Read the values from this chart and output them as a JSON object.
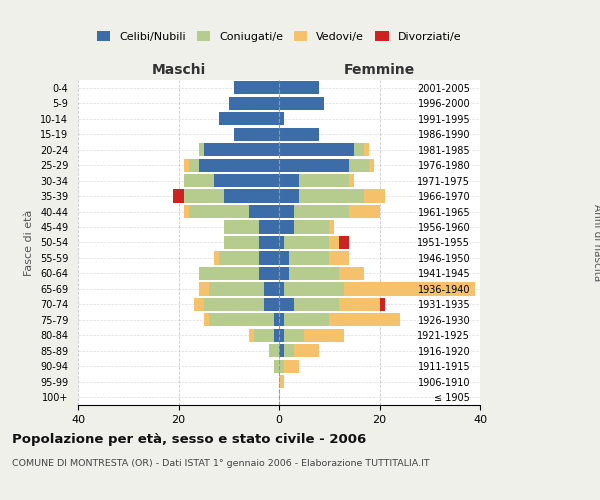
{
  "age_groups": [
    "100+",
    "95-99",
    "90-94",
    "85-89",
    "80-84",
    "75-79",
    "70-74",
    "65-69",
    "60-64",
    "55-59",
    "50-54",
    "45-49",
    "40-44",
    "35-39",
    "30-34",
    "25-29",
    "20-24",
    "15-19",
    "10-14",
    "5-9",
    "0-4"
  ],
  "birth_years": [
    "≤ 1905",
    "1906-1910",
    "1911-1915",
    "1916-1920",
    "1921-1925",
    "1926-1930",
    "1931-1935",
    "1936-1940",
    "1941-1945",
    "1946-1950",
    "1951-1955",
    "1956-1960",
    "1961-1965",
    "1966-1970",
    "1971-1975",
    "1976-1980",
    "1981-1985",
    "1986-1990",
    "1991-1995",
    "1996-2000",
    "2001-2005"
  ],
  "males": {
    "celibi": [
      0,
      0,
      0,
      0,
      1,
      1,
      3,
      3,
      4,
      4,
      4,
      4,
      6,
      11,
      13,
      16,
      15,
      9,
      12,
      10,
      9
    ],
    "coniugati": [
      0,
      0,
      1,
      2,
      4,
      13,
      12,
      11,
      12,
      8,
      7,
      7,
      12,
      8,
      6,
      2,
      1,
      0,
      0,
      0,
      0
    ],
    "vedovi": [
      0,
      0,
      0,
      0,
      1,
      1,
      2,
      2,
      0,
      1,
      0,
      0,
      1,
      0,
      0,
      1,
      0,
      0,
      0,
      0,
      0
    ],
    "divorziati": [
      0,
      0,
      0,
      0,
      0,
      0,
      0,
      0,
      0,
      0,
      0,
      0,
      0,
      2,
      0,
      0,
      0,
      0,
      0,
      0,
      0
    ]
  },
  "females": {
    "nubili": [
      0,
      0,
      0,
      1,
      1,
      1,
      3,
      1,
      2,
      2,
      1,
      3,
      3,
      4,
      4,
      14,
      15,
      8,
      1,
      9,
      8
    ],
    "coniugate": [
      0,
      0,
      1,
      2,
      4,
      9,
      9,
      12,
      10,
      8,
      9,
      7,
      11,
      13,
      10,
      4,
      2,
      0,
      0,
      0,
      0
    ],
    "vedove": [
      0,
      1,
      3,
      5,
      8,
      14,
      8,
      26,
      5,
      4,
      2,
      1,
      6,
      4,
      1,
      1,
      1,
      0,
      0,
      0,
      0
    ],
    "divorziate": [
      0,
      0,
      0,
      0,
      0,
      0,
      1,
      0,
      0,
      0,
      2,
      0,
      0,
      0,
      0,
      0,
      0,
      0,
      0,
      0,
      0
    ]
  },
  "colors": {
    "celibi": "#3d6da8",
    "coniugati": "#b5cc8e",
    "vedovi": "#f5c26b",
    "divorziati": "#cc2222"
  },
  "xlim": 40,
  "title": "Popolazione per età, sesso e stato civile - 2006",
  "subtitle": "COMUNE DI MONTRESTA (OR) - Dati ISTAT 1° gennaio 2006 - Elaborazione TUTTITALIA.IT",
  "ylabel_left": "Fasce di età",
  "ylabel_right": "Anni di nascita",
  "xlabel_left": "Maschi",
  "xlabel_right": "Femmine",
  "bg_color": "#f0f0eb",
  "plot_bg": "#ffffff"
}
